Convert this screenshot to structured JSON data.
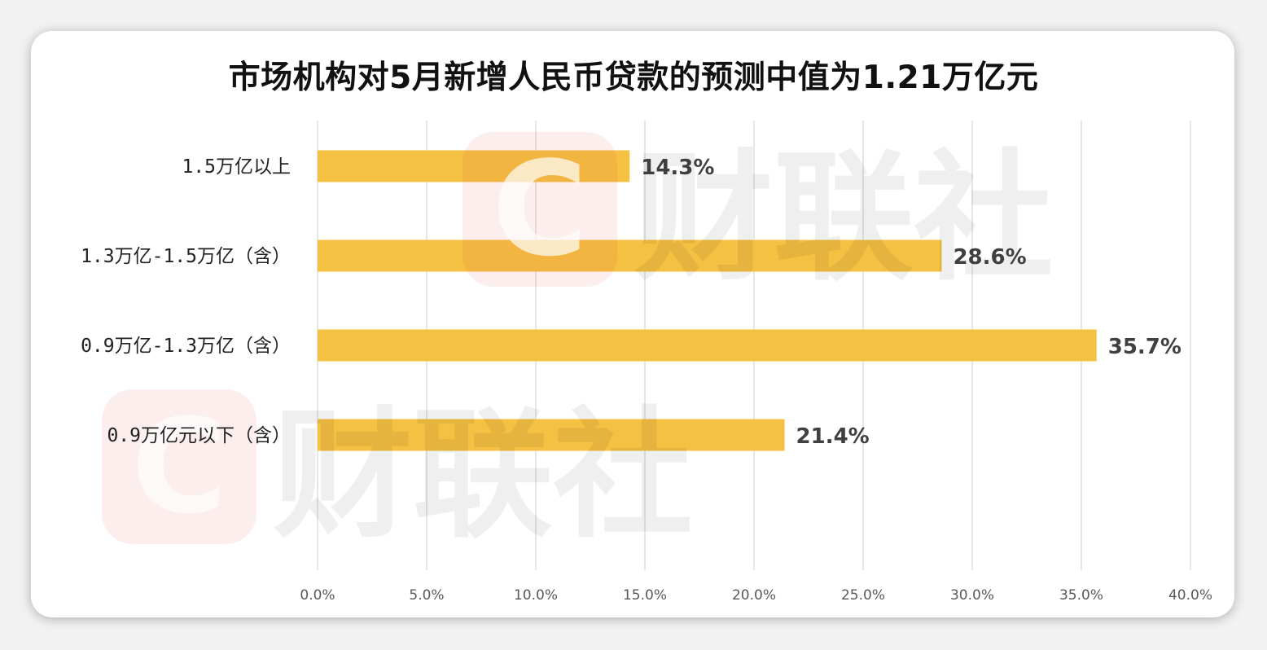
{
  "chart_data": {
    "type": "bar",
    "orientation": "horizontal",
    "title": "市场机构对5月新增人民币贷款的预测中值为1.21万亿元",
    "categories": [
      "1.5万亿以上",
      "1.3万亿-1.5万亿（含）",
      "0.9万亿-1.3万亿（含）",
      "0.9万亿元以下（含）"
    ],
    "values": [
      14.3,
      28.6,
      35.7,
      21.4
    ],
    "data_labels": [
      "14.3%",
      "28.6%",
      "35.7%",
      "21.4%"
    ],
    "xlim": [
      0,
      40
    ],
    "x_ticks": [
      0,
      5,
      10,
      15,
      20,
      25,
      30,
      35,
      40
    ],
    "x_tick_labels": [
      "0.0%",
      "5.0%",
      "10.0%",
      "15.0%",
      "20.0%",
      "25.0%",
      "30.0%",
      "35.0%",
      "40.0%"
    ],
    "grid": "vertical",
    "legend": "none",
    "bar_color": "#f5c143"
  },
  "watermark": {
    "text": "财联社",
    "logo_letter": "C",
    "logo_color": "#e8473f"
  }
}
